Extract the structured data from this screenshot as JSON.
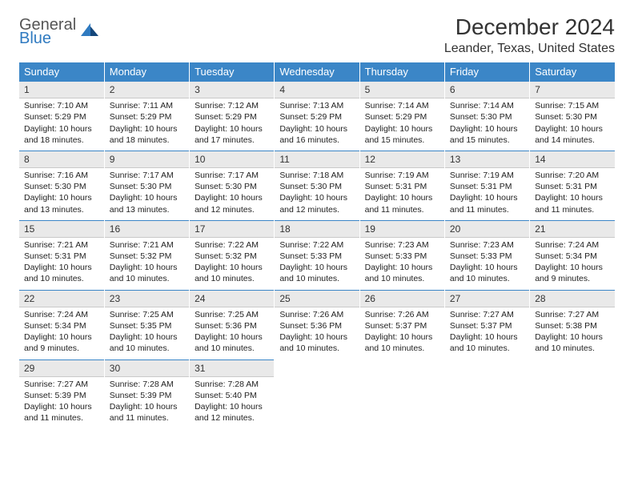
{
  "logo": {
    "general": "General",
    "blue": "Blue"
  },
  "title": "December 2024",
  "location": "Leander, Texas, United States",
  "headers": [
    "Sunday",
    "Monday",
    "Tuesday",
    "Wednesday",
    "Thursday",
    "Friday",
    "Saturday"
  ],
  "colors": {
    "header_bg": "#3b86c7",
    "header_fg": "#ffffff",
    "daynum_bg": "#e9e9e9",
    "border_top": "#3b86c7",
    "logo_blue": "#2f7ac0",
    "text": "#333333"
  },
  "weeks": [
    [
      {
        "n": "1",
        "sr": "Sunrise: 7:10 AM",
        "ss": "Sunset: 5:29 PM",
        "d1": "Daylight: 10 hours",
        "d2": "and 18 minutes."
      },
      {
        "n": "2",
        "sr": "Sunrise: 7:11 AM",
        "ss": "Sunset: 5:29 PM",
        "d1": "Daylight: 10 hours",
        "d2": "and 18 minutes."
      },
      {
        "n": "3",
        "sr": "Sunrise: 7:12 AM",
        "ss": "Sunset: 5:29 PM",
        "d1": "Daylight: 10 hours",
        "d2": "and 17 minutes."
      },
      {
        "n": "4",
        "sr": "Sunrise: 7:13 AM",
        "ss": "Sunset: 5:29 PM",
        "d1": "Daylight: 10 hours",
        "d2": "and 16 minutes."
      },
      {
        "n": "5",
        "sr": "Sunrise: 7:14 AM",
        "ss": "Sunset: 5:29 PM",
        "d1": "Daylight: 10 hours",
        "d2": "and 15 minutes."
      },
      {
        "n": "6",
        "sr": "Sunrise: 7:14 AM",
        "ss": "Sunset: 5:30 PM",
        "d1": "Daylight: 10 hours",
        "d2": "and 15 minutes."
      },
      {
        "n": "7",
        "sr": "Sunrise: 7:15 AM",
        "ss": "Sunset: 5:30 PM",
        "d1": "Daylight: 10 hours",
        "d2": "and 14 minutes."
      }
    ],
    [
      {
        "n": "8",
        "sr": "Sunrise: 7:16 AM",
        "ss": "Sunset: 5:30 PM",
        "d1": "Daylight: 10 hours",
        "d2": "and 13 minutes."
      },
      {
        "n": "9",
        "sr": "Sunrise: 7:17 AM",
        "ss": "Sunset: 5:30 PM",
        "d1": "Daylight: 10 hours",
        "d2": "and 13 minutes."
      },
      {
        "n": "10",
        "sr": "Sunrise: 7:17 AM",
        "ss": "Sunset: 5:30 PM",
        "d1": "Daylight: 10 hours",
        "d2": "and 12 minutes."
      },
      {
        "n": "11",
        "sr": "Sunrise: 7:18 AM",
        "ss": "Sunset: 5:30 PM",
        "d1": "Daylight: 10 hours",
        "d2": "and 12 minutes."
      },
      {
        "n": "12",
        "sr": "Sunrise: 7:19 AM",
        "ss": "Sunset: 5:31 PM",
        "d1": "Daylight: 10 hours",
        "d2": "and 11 minutes."
      },
      {
        "n": "13",
        "sr": "Sunrise: 7:19 AM",
        "ss": "Sunset: 5:31 PM",
        "d1": "Daylight: 10 hours",
        "d2": "and 11 minutes."
      },
      {
        "n": "14",
        "sr": "Sunrise: 7:20 AM",
        "ss": "Sunset: 5:31 PM",
        "d1": "Daylight: 10 hours",
        "d2": "and 11 minutes."
      }
    ],
    [
      {
        "n": "15",
        "sr": "Sunrise: 7:21 AM",
        "ss": "Sunset: 5:31 PM",
        "d1": "Daylight: 10 hours",
        "d2": "and 10 minutes."
      },
      {
        "n": "16",
        "sr": "Sunrise: 7:21 AM",
        "ss": "Sunset: 5:32 PM",
        "d1": "Daylight: 10 hours",
        "d2": "and 10 minutes."
      },
      {
        "n": "17",
        "sr": "Sunrise: 7:22 AM",
        "ss": "Sunset: 5:32 PM",
        "d1": "Daylight: 10 hours",
        "d2": "and 10 minutes."
      },
      {
        "n": "18",
        "sr": "Sunrise: 7:22 AM",
        "ss": "Sunset: 5:33 PM",
        "d1": "Daylight: 10 hours",
        "d2": "and 10 minutes."
      },
      {
        "n": "19",
        "sr": "Sunrise: 7:23 AM",
        "ss": "Sunset: 5:33 PM",
        "d1": "Daylight: 10 hours",
        "d2": "and 10 minutes."
      },
      {
        "n": "20",
        "sr": "Sunrise: 7:23 AM",
        "ss": "Sunset: 5:33 PM",
        "d1": "Daylight: 10 hours",
        "d2": "and 10 minutes."
      },
      {
        "n": "21",
        "sr": "Sunrise: 7:24 AM",
        "ss": "Sunset: 5:34 PM",
        "d1": "Daylight: 10 hours",
        "d2": "and 9 minutes."
      }
    ],
    [
      {
        "n": "22",
        "sr": "Sunrise: 7:24 AM",
        "ss": "Sunset: 5:34 PM",
        "d1": "Daylight: 10 hours",
        "d2": "and 9 minutes."
      },
      {
        "n": "23",
        "sr": "Sunrise: 7:25 AM",
        "ss": "Sunset: 5:35 PM",
        "d1": "Daylight: 10 hours",
        "d2": "and 10 minutes."
      },
      {
        "n": "24",
        "sr": "Sunrise: 7:25 AM",
        "ss": "Sunset: 5:36 PM",
        "d1": "Daylight: 10 hours",
        "d2": "and 10 minutes."
      },
      {
        "n": "25",
        "sr": "Sunrise: 7:26 AM",
        "ss": "Sunset: 5:36 PM",
        "d1": "Daylight: 10 hours",
        "d2": "and 10 minutes."
      },
      {
        "n": "26",
        "sr": "Sunrise: 7:26 AM",
        "ss": "Sunset: 5:37 PM",
        "d1": "Daylight: 10 hours",
        "d2": "and 10 minutes."
      },
      {
        "n": "27",
        "sr": "Sunrise: 7:27 AM",
        "ss": "Sunset: 5:37 PM",
        "d1": "Daylight: 10 hours",
        "d2": "and 10 minutes."
      },
      {
        "n": "28",
        "sr": "Sunrise: 7:27 AM",
        "ss": "Sunset: 5:38 PM",
        "d1": "Daylight: 10 hours",
        "d2": "and 10 minutes."
      }
    ],
    [
      {
        "n": "29",
        "sr": "Sunrise: 7:27 AM",
        "ss": "Sunset: 5:39 PM",
        "d1": "Daylight: 10 hours",
        "d2": "and 11 minutes."
      },
      {
        "n": "30",
        "sr": "Sunrise: 7:28 AM",
        "ss": "Sunset: 5:39 PM",
        "d1": "Daylight: 10 hours",
        "d2": "and 11 minutes."
      },
      {
        "n": "31",
        "sr": "Sunrise: 7:28 AM",
        "ss": "Sunset: 5:40 PM",
        "d1": "Daylight: 10 hours",
        "d2": "and 12 minutes."
      },
      null,
      null,
      null,
      null
    ]
  ]
}
